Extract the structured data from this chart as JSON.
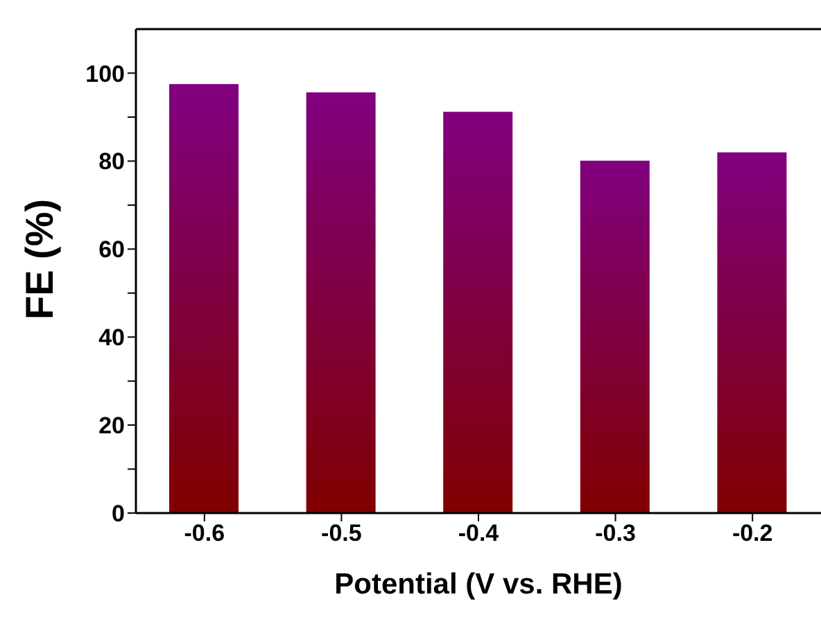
{
  "chart_data": {
    "type": "bar",
    "xlabel": "Potential (V vs. RHE)",
    "ylabel": "FE (%)",
    "categories": [
      "-0.6",
      "-0.5",
      "-0.4",
      "-0.3",
      "-0.2"
    ],
    "values": [
      97.5,
      95.6,
      91.2,
      80.1,
      82.0
    ],
    "color": "#800080",
    "ylim": [
      0,
      110
    ],
    "yticks": [
      0,
      {
        "value": 10,
        "label": null
      },
      20,
      {
        "value": 30,
        "label": null
      },
      40,
      {
        "value": 50,
        "label": null
      },
      60,
      {
        "value": 70,
        "label": null
      },
      80,
      {
        "value": 90,
        "label": null
      },
      100
    ],
    "grid": false
  }
}
